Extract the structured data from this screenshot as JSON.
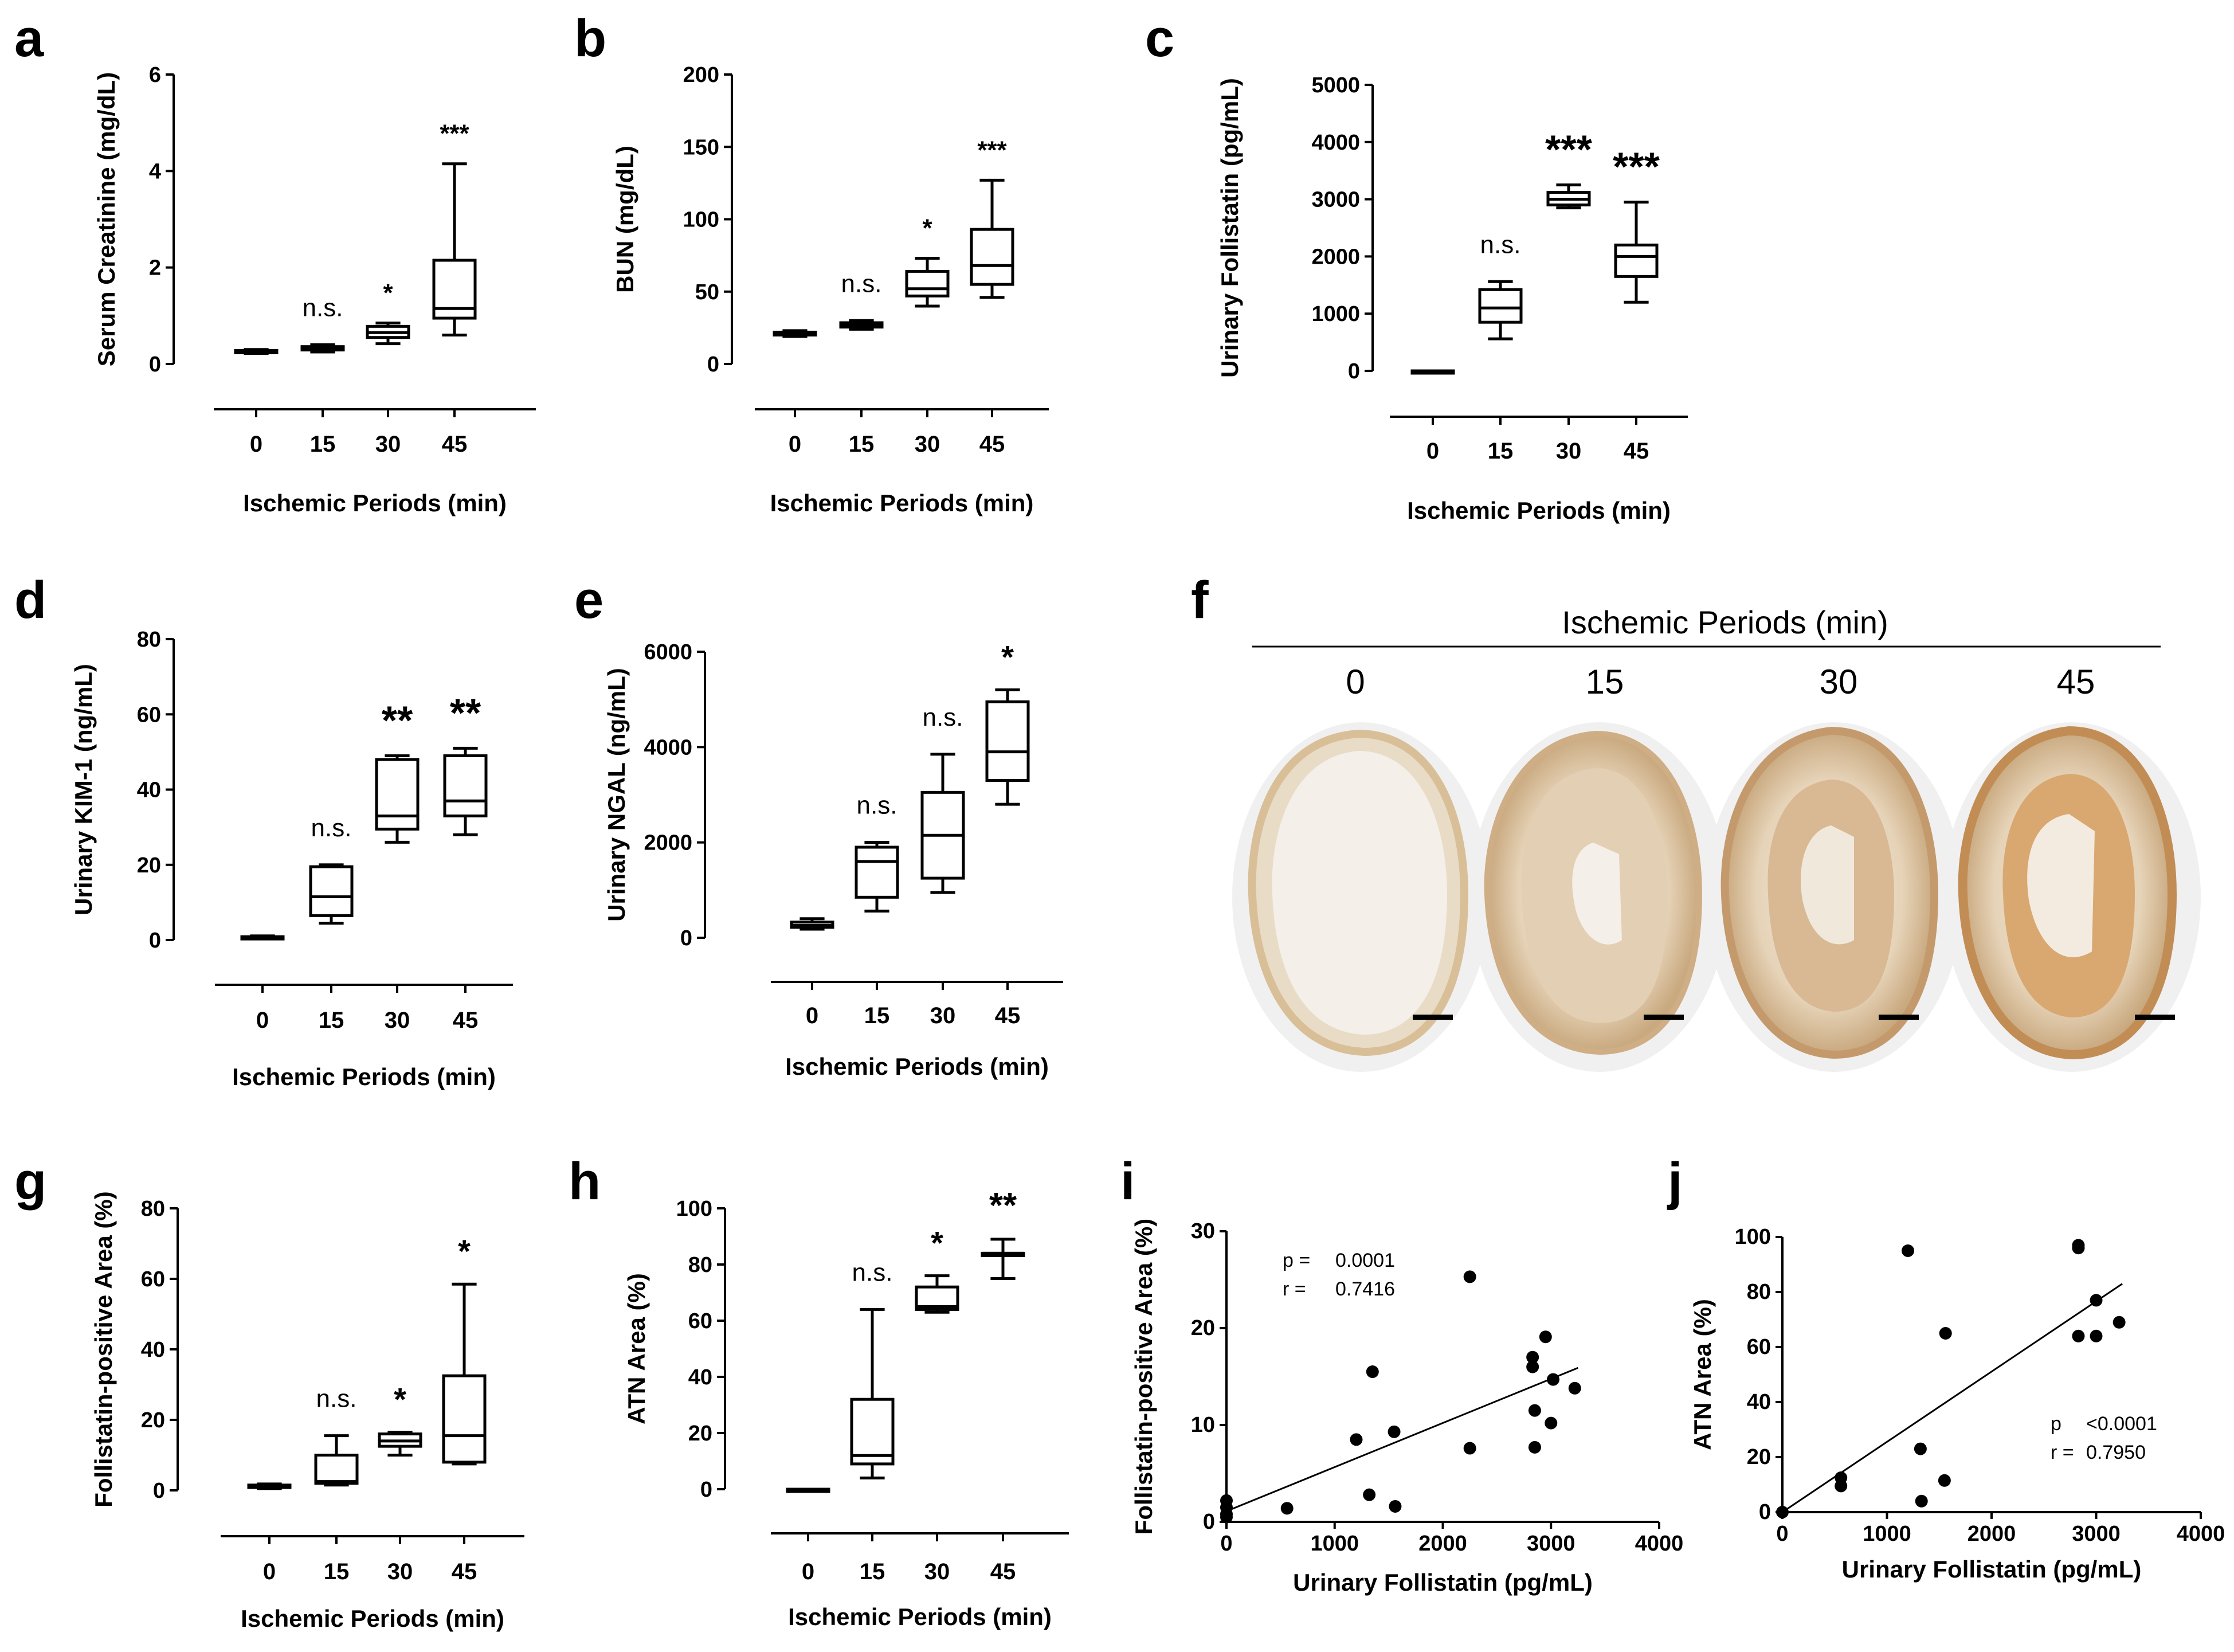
{
  "figure": {
    "letters": [
      "a",
      "b",
      "c",
      "d",
      "e",
      "f",
      "g",
      "h",
      "i",
      "j"
    ],
    "histology": {
      "header": "Ischemic Periods (min)",
      "times": [
        "0",
        "15",
        "30",
        "45"
      ]
    }
  },
  "chart_data": [
    {
      "id": "a",
      "type": "box",
      "ylabel": "Serum Creatinine (mg/dL)",
      "xlabel": "Ischemic Periods (min)",
      "ylim": [
        0,
        6
      ],
      "yticks": [
        0,
        2,
        4,
        6
      ],
      "categories": [
        "0",
        "15",
        "30",
        "45"
      ],
      "boxes": [
        {
          "min": 0.22,
          "q1": 0.24,
          "median": 0.26,
          "q3": 0.28,
          "max": 0.3
        },
        {
          "min": 0.25,
          "q1": 0.29,
          "median": 0.32,
          "q3": 0.36,
          "max": 0.4
        },
        {
          "min": 0.42,
          "q1": 0.55,
          "median": 0.65,
          "q3": 0.78,
          "max": 0.85
        },
        {
          "min": 0.6,
          "q1": 0.95,
          "median": 1.15,
          "q3": 2.15,
          "max": 4.15
        }
      ],
      "significance": [
        "",
        "n.s.",
        "*",
        "***"
      ]
    },
    {
      "id": "b",
      "type": "box",
      "ylabel": "BUN (mg/dL)",
      "xlabel": "Ischemic Periods (min)",
      "ylim": [
        0,
        200
      ],
      "yticks": [
        0,
        50,
        100,
        150,
        200
      ],
      "categories": [
        "0",
        "15",
        "30",
        "45"
      ],
      "boxes": [
        {
          "min": 19,
          "q1": 20,
          "median": 21,
          "q3": 22,
          "max": 23
        },
        {
          "min": 24,
          "q1": 25.5,
          "median": 27,
          "q3": 28.5,
          "max": 30
        },
        {
          "min": 40,
          "q1": 47,
          "median": 52,
          "q3": 64,
          "max": 73
        },
        {
          "min": 46,
          "q1": 55,
          "median": 68,
          "q3": 93,
          "max": 127
        }
      ],
      "significance": [
        "",
        "n.s.",
        "*",
        "***"
      ]
    },
    {
      "id": "c",
      "type": "box",
      "ylabel": "Urinary Follistatin (pg/mL)",
      "xlabel": "Ischemic Periods (min)",
      "ylim": [
        0,
        5000
      ],
      "yticks": [
        0,
        1000,
        2000,
        3000,
        4000,
        5000
      ],
      "categories": [
        "0",
        "15",
        "30",
        "45"
      ],
      "boxes": [
        {
          "min": 0,
          "q1": 0,
          "median": 0,
          "q3": 0,
          "max": 0
        },
        {
          "min": 560,
          "q1": 850,
          "median": 1100,
          "q3": 1420,
          "max": 1560
        },
        {
          "min": 2850,
          "q1": 2900,
          "median": 3000,
          "q3": 3120,
          "max": 3250
        },
        {
          "min": 1200,
          "q1": 1650,
          "median": 2000,
          "q3": 2200,
          "max": 2950
        }
      ],
      "significance": [
        "",
        "n.s.",
        "***",
        "***"
      ]
    },
    {
      "id": "d",
      "type": "box",
      "ylabel": "Urinary KIM-1 (ng/mL)",
      "xlabel": "Ischemic Periods (min)",
      "ylim": [
        0,
        80
      ],
      "yticks": [
        0,
        20,
        40,
        60,
        80
      ],
      "categories": [
        "0",
        "15",
        "30",
        "45"
      ],
      "boxes": [
        {
          "min": 0.3,
          "q1": 0.5,
          "median": 0.7,
          "q3": 0.9,
          "max": 1.1
        },
        {
          "min": 4.5,
          "q1": 6.5,
          "median": 11.5,
          "q3": 19.5,
          "max": 20
        },
        {
          "min": 26,
          "q1": 29.5,
          "median": 33,
          "q3": 48,
          "max": 49
        },
        {
          "min": 28,
          "q1": 33,
          "median": 37,
          "q3": 49,
          "max": 51
        }
      ],
      "significance": [
        "",
        "n.s.",
        "**",
        "**"
      ]
    },
    {
      "id": "e",
      "type": "box",
      "ylabel": "Urinary NGAL (ng/mL)",
      "xlabel": "Ischemic Periods (min)",
      "ylim": [
        0,
        6000
      ],
      "yticks": [
        0,
        2000,
        4000,
        6000
      ],
      "categories": [
        "0",
        "15",
        "30",
        "45"
      ],
      "boxes": [
        {
          "min": 180,
          "q1": 220,
          "median": 260,
          "q3": 330,
          "max": 400
        },
        {
          "min": 560,
          "q1": 850,
          "median": 1600,
          "q3": 1900,
          "max": 2000
        },
        {
          "min": 950,
          "q1": 1250,
          "median": 2150,
          "q3": 3050,
          "max": 3850
        },
        {
          "min": 2800,
          "q1": 3300,
          "median": 3900,
          "q3": 4950,
          "max": 5200
        }
      ],
      "significance": [
        "",
        "n.s.",
        "n.s.",
        "*"
      ]
    },
    {
      "id": "g",
      "type": "box",
      "ylabel": "Follistatin-positive Area (%)",
      "xlabel": "Ischemic Periods (min)",
      "ylim": [
        0,
        80
      ],
      "yticks": [
        0,
        20,
        40,
        60,
        80
      ],
      "categories": [
        "0",
        "15",
        "30",
        "45"
      ],
      "boxes": [
        {
          "min": 0.5,
          "q1": 0.8,
          "median": 1.2,
          "q3": 1.5,
          "max": 1.8
        },
        {
          "min": 1.5,
          "q1": 2,
          "median": 2.5,
          "q3": 10,
          "max": 15.5
        },
        {
          "min": 10,
          "q1": 12.5,
          "median": 14,
          "q3": 16,
          "max": 16.5
        },
        {
          "min": 7.5,
          "q1": 8,
          "median": 15.5,
          "q3": 32.5,
          "max": 58.5
        }
      ],
      "significance": [
        "",
        "n.s.",
        "*",
        "*"
      ]
    },
    {
      "id": "h",
      "type": "box",
      "ylabel": "ATN Area (%)",
      "xlabel": "Ischemic Periods (min)",
      "ylim": [
        0,
        100
      ],
      "yticks": [
        0,
        20,
        40,
        60,
        80,
        100
      ],
      "categories": [
        "0",
        "15",
        "30",
        "45"
      ],
      "boxes": [
        {
          "min": 0,
          "q1": 0,
          "median": 0,
          "q3": 0,
          "max": 0
        },
        {
          "min": 4,
          "q1": 9,
          "median": 12,
          "q3": 32,
          "max": 64
        },
        {
          "min": 63,
          "q1": 64,
          "median": 65,
          "q3": 72,
          "max": 76
        },
        {
          "min": 75,
          "q1": 84,
          "median": 84,
          "q3": 84,
          "max": 89
        }
      ],
      "significance": [
        "",
        "n.s.",
        "*",
        "**"
      ]
    },
    {
      "id": "i",
      "type": "scatter",
      "xlabel": "Urinary Follistatin (pg/mL)",
      "ylabel": "Follistatin-positive Area (%)",
      "xlim": [
        0,
        4000
      ],
      "ylim": [
        0,
        30
      ],
      "xticks": [
        0,
        1000,
        2000,
        3000,
        4000
      ],
      "yticks": [
        0,
        10,
        20,
        30
      ],
      "points": [
        [
          0,
          2.2
        ],
        [
          0,
          1.5
        ],
        [
          0,
          0.8
        ],
        [
          0,
          0.5
        ],
        [
          560,
          1.4
        ],
        [
          1200,
          8.5
        ],
        [
          1320,
          2.8
        ],
        [
          1350,
          15.5
        ],
        [
          1550,
          9.3
        ],
        [
          1560,
          1.6
        ],
        [
          2250,
          25.3
        ],
        [
          2250,
          7.6
        ],
        [
          2830,
          17
        ],
        [
          2830,
          16
        ],
        [
          2850,
          11.5
        ],
        [
          2850,
          7.7
        ],
        [
          2950,
          19.1
        ],
        [
          3000,
          10.2
        ],
        [
          3020,
          14.7
        ],
        [
          3220,
          13.8
        ]
      ],
      "fit": {
        "x": [
          0,
          3250
        ],
        "y": [
          1.1,
          15.9
        ]
      },
      "stats": {
        "p_label": "p =",
        "p_value": "0.0001",
        "r_label": "r =",
        "r_value": "0.7416"
      }
    },
    {
      "id": "j",
      "type": "scatter",
      "xlabel": "Urinary Follistatin (pg/mL)",
      "ylabel": "ATN Area (%)",
      "xlim": [
        0,
        4000
      ],
      "ylim": [
        0,
        100
      ],
      "xticks": [
        0,
        1000,
        2000,
        3000,
        4000
      ],
      "yticks": [
        0,
        20,
        40,
        60,
        80,
        100
      ],
      "points": [
        [
          0,
          0
        ],
        [
          560,
          12.5
        ],
        [
          560,
          9.5
        ],
        [
          1200,
          95
        ],
        [
          1320,
          23
        ],
        [
          1330,
          4
        ],
        [
          1550,
          11.5
        ],
        [
          1560,
          65
        ],
        [
          2830,
          97
        ],
        [
          2830,
          96
        ],
        [
          2830,
          64
        ],
        [
          3000,
          77
        ],
        [
          3000,
          64
        ],
        [
          3220,
          69
        ]
      ],
      "fit": {
        "x": [
          0,
          3250
        ],
        "y": [
          0,
          83
        ]
      },
      "stats": {
        "p_label": "p",
        "p_value": "<0.0001",
        "r_label": "r =",
        "r_value": "0.7950"
      }
    }
  ]
}
